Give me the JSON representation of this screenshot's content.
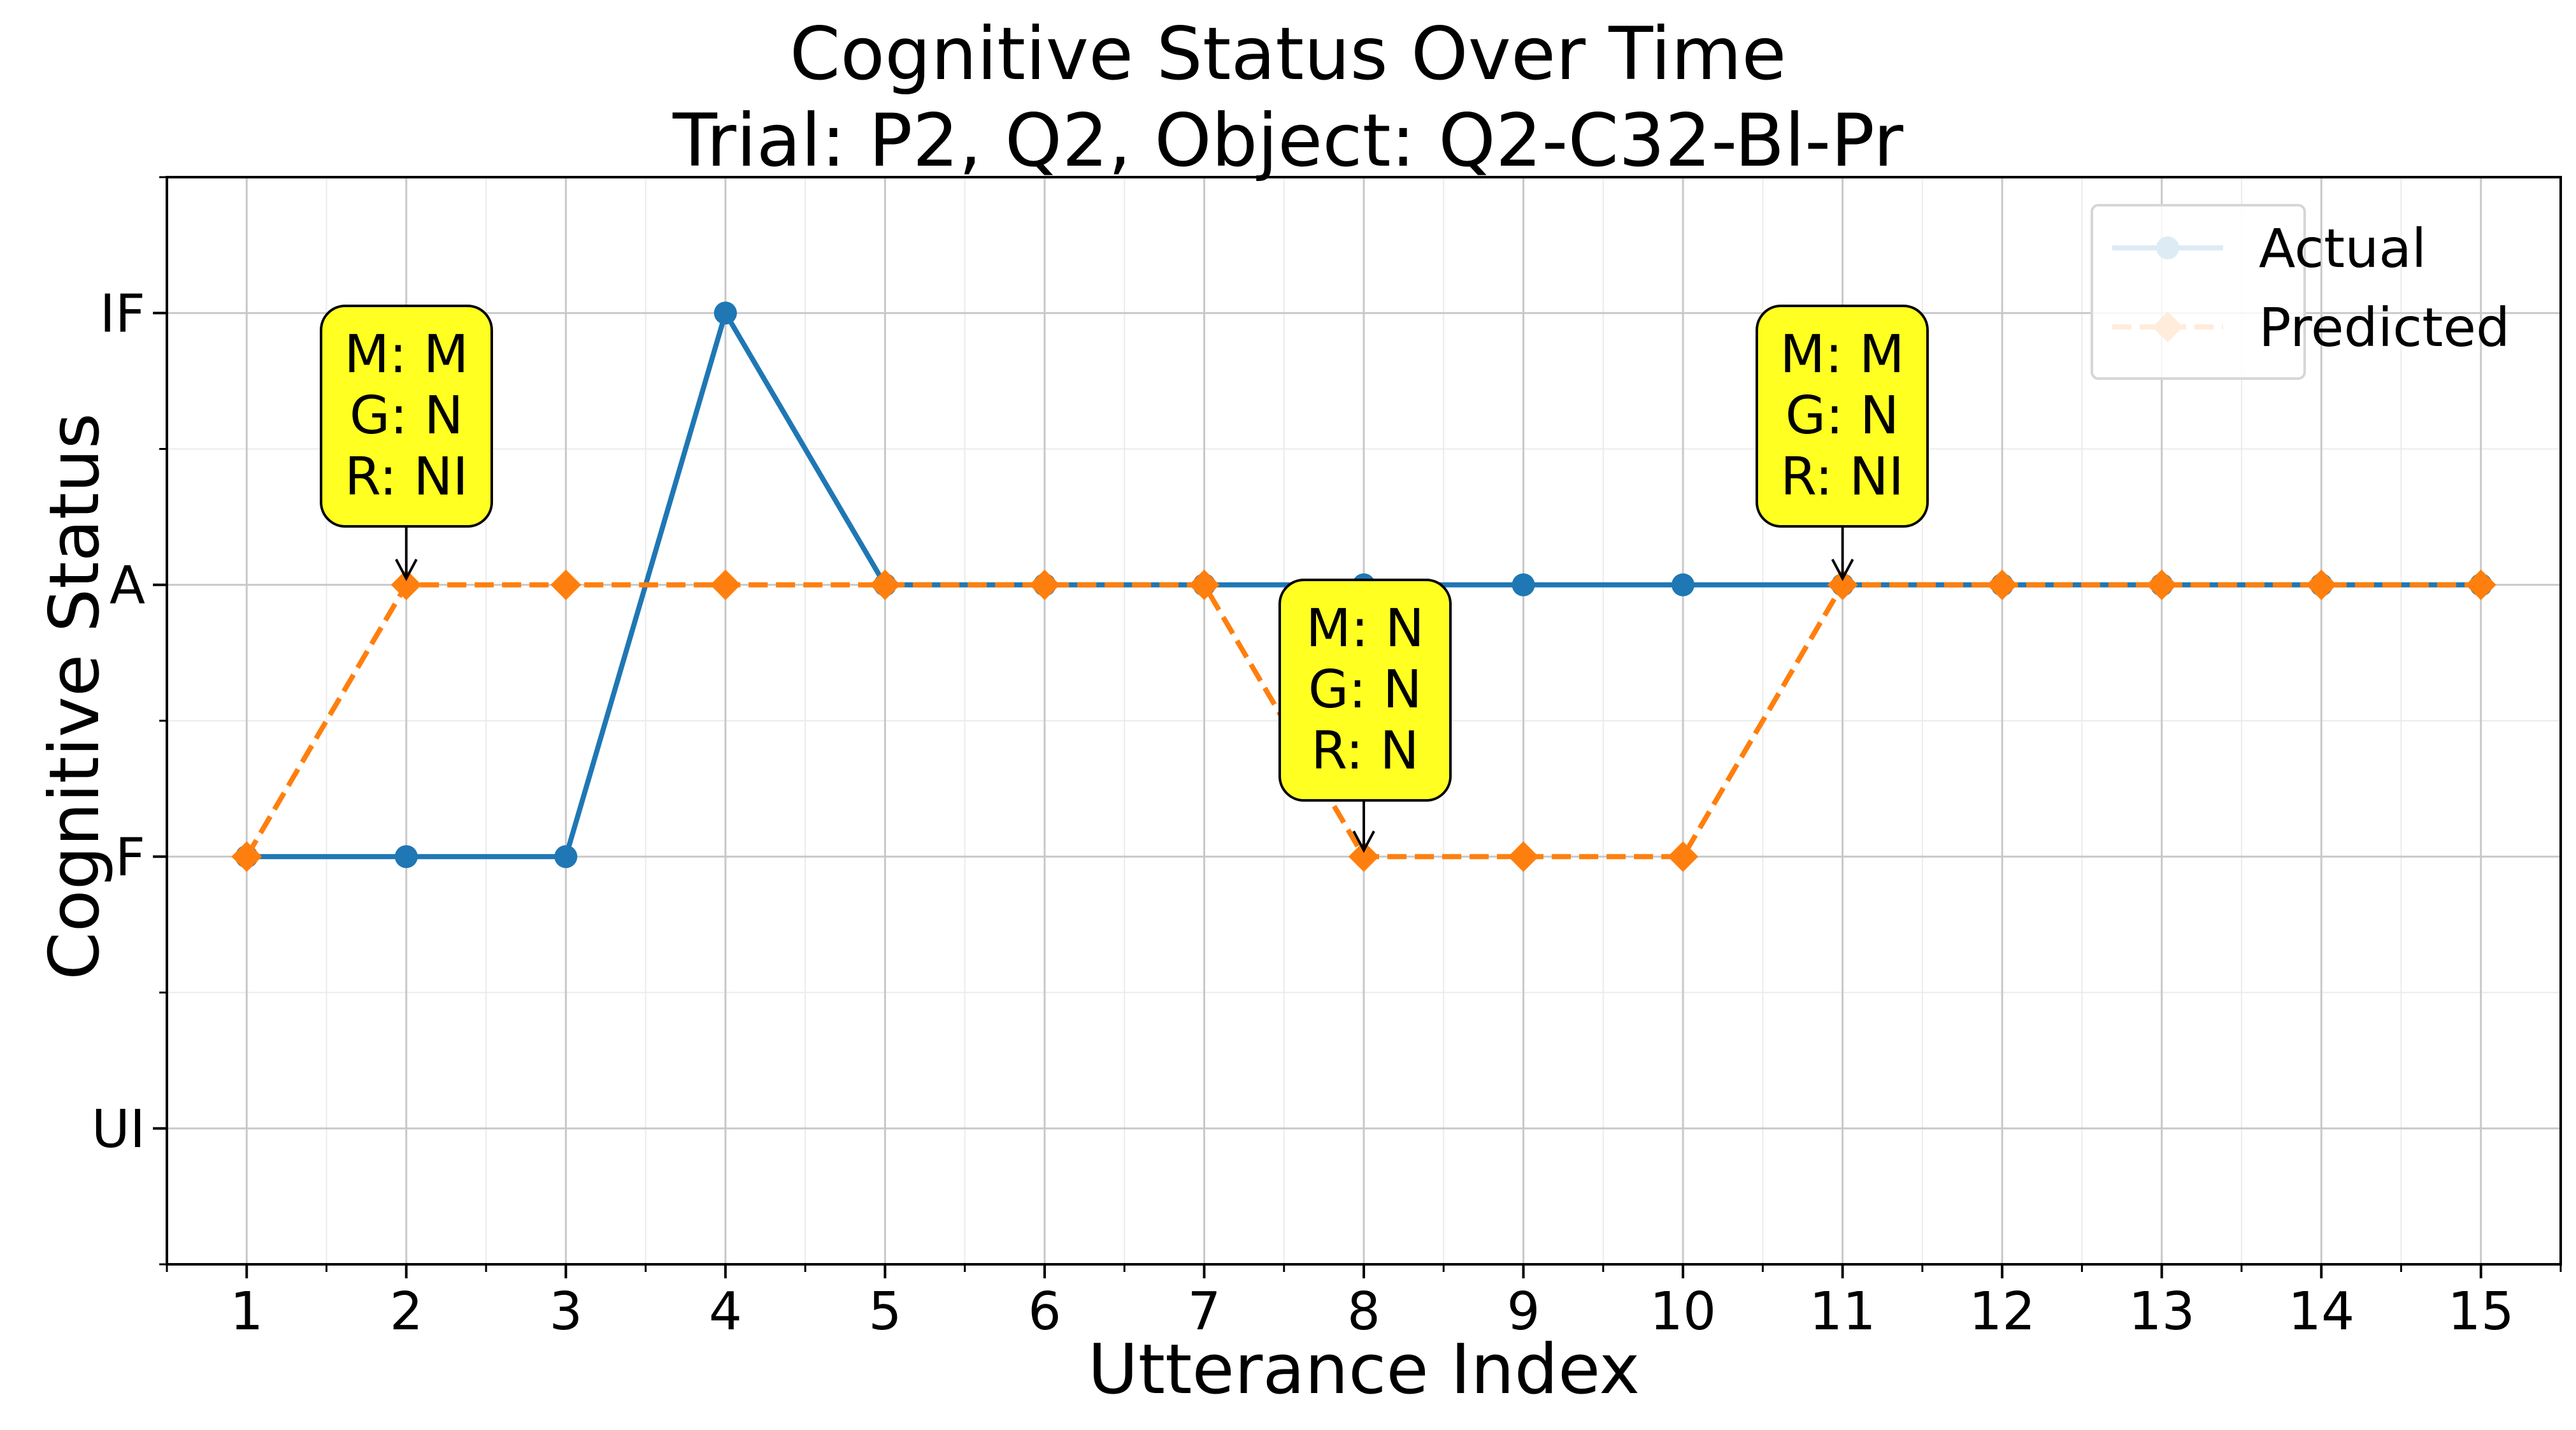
{
  "chart_data": {
    "type": "line",
    "title": "Cognitive Status Over Time",
    "subtitle": "Trial: P2, Q2, Object: Q2-C32-Bl-Pr",
    "xlabel": "Utterance Index",
    "ylabel": "Cognitive Status",
    "x": [
      1,
      2,
      3,
      4,
      5,
      6,
      7,
      8,
      9,
      10,
      11,
      12,
      13,
      14,
      15
    ],
    "x_tick_labels": [
      "1",
      "2",
      "3",
      "4",
      "5",
      "6",
      "7",
      "8",
      "9",
      "10",
      "11",
      "12",
      "13",
      "14",
      "15"
    ],
    "y_categories": [
      "UI",
      "F",
      "A",
      "IF"
    ],
    "y_tick_labels": [
      "UI",
      "F",
      "A",
      "IF"
    ],
    "xlim": [
      0.5,
      15.5
    ],
    "ylim": [
      -0.5,
      3.5
    ],
    "grid": true,
    "legend_position": "top-right",
    "series": [
      {
        "name": "Actual",
        "color": "#1f77b4",
        "linestyle": "solid",
        "marker": "circle",
        "values": [
          "F",
          "F",
          "F",
          "IF",
          "A",
          "A",
          "A",
          "A",
          "A",
          "A",
          "A",
          "A",
          "A",
          "A",
          "A"
        ]
      },
      {
        "name": "Predicted",
        "color": "#ff7f0e",
        "linestyle": "dashed",
        "marker": "diamond",
        "values": [
          "F",
          "A",
          "A",
          "A",
          "A",
          "A",
          "A",
          "F",
          "F",
          "F",
          "A",
          "A",
          "A",
          "A",
          "A"
        ]
      }
    ],
    "annotations": [
      {
        "x": 2,
        "y": "A",
        "lines": [
          "M: M",
          "G: N",
          "R: NI"
        ]
      },
      {
        "x": 8,
        "y": "F",
        "lines": [
          "M: N",
          "G: N",
          "R: N"
        ]
      },
      {
        "x": 11,
        "y": "A",
        "lines": [
          "M: M",
          "G: N",
          "R: NI"
        ]
      }
    ],
    "annotation_color": "#ffff22"
  }
}
